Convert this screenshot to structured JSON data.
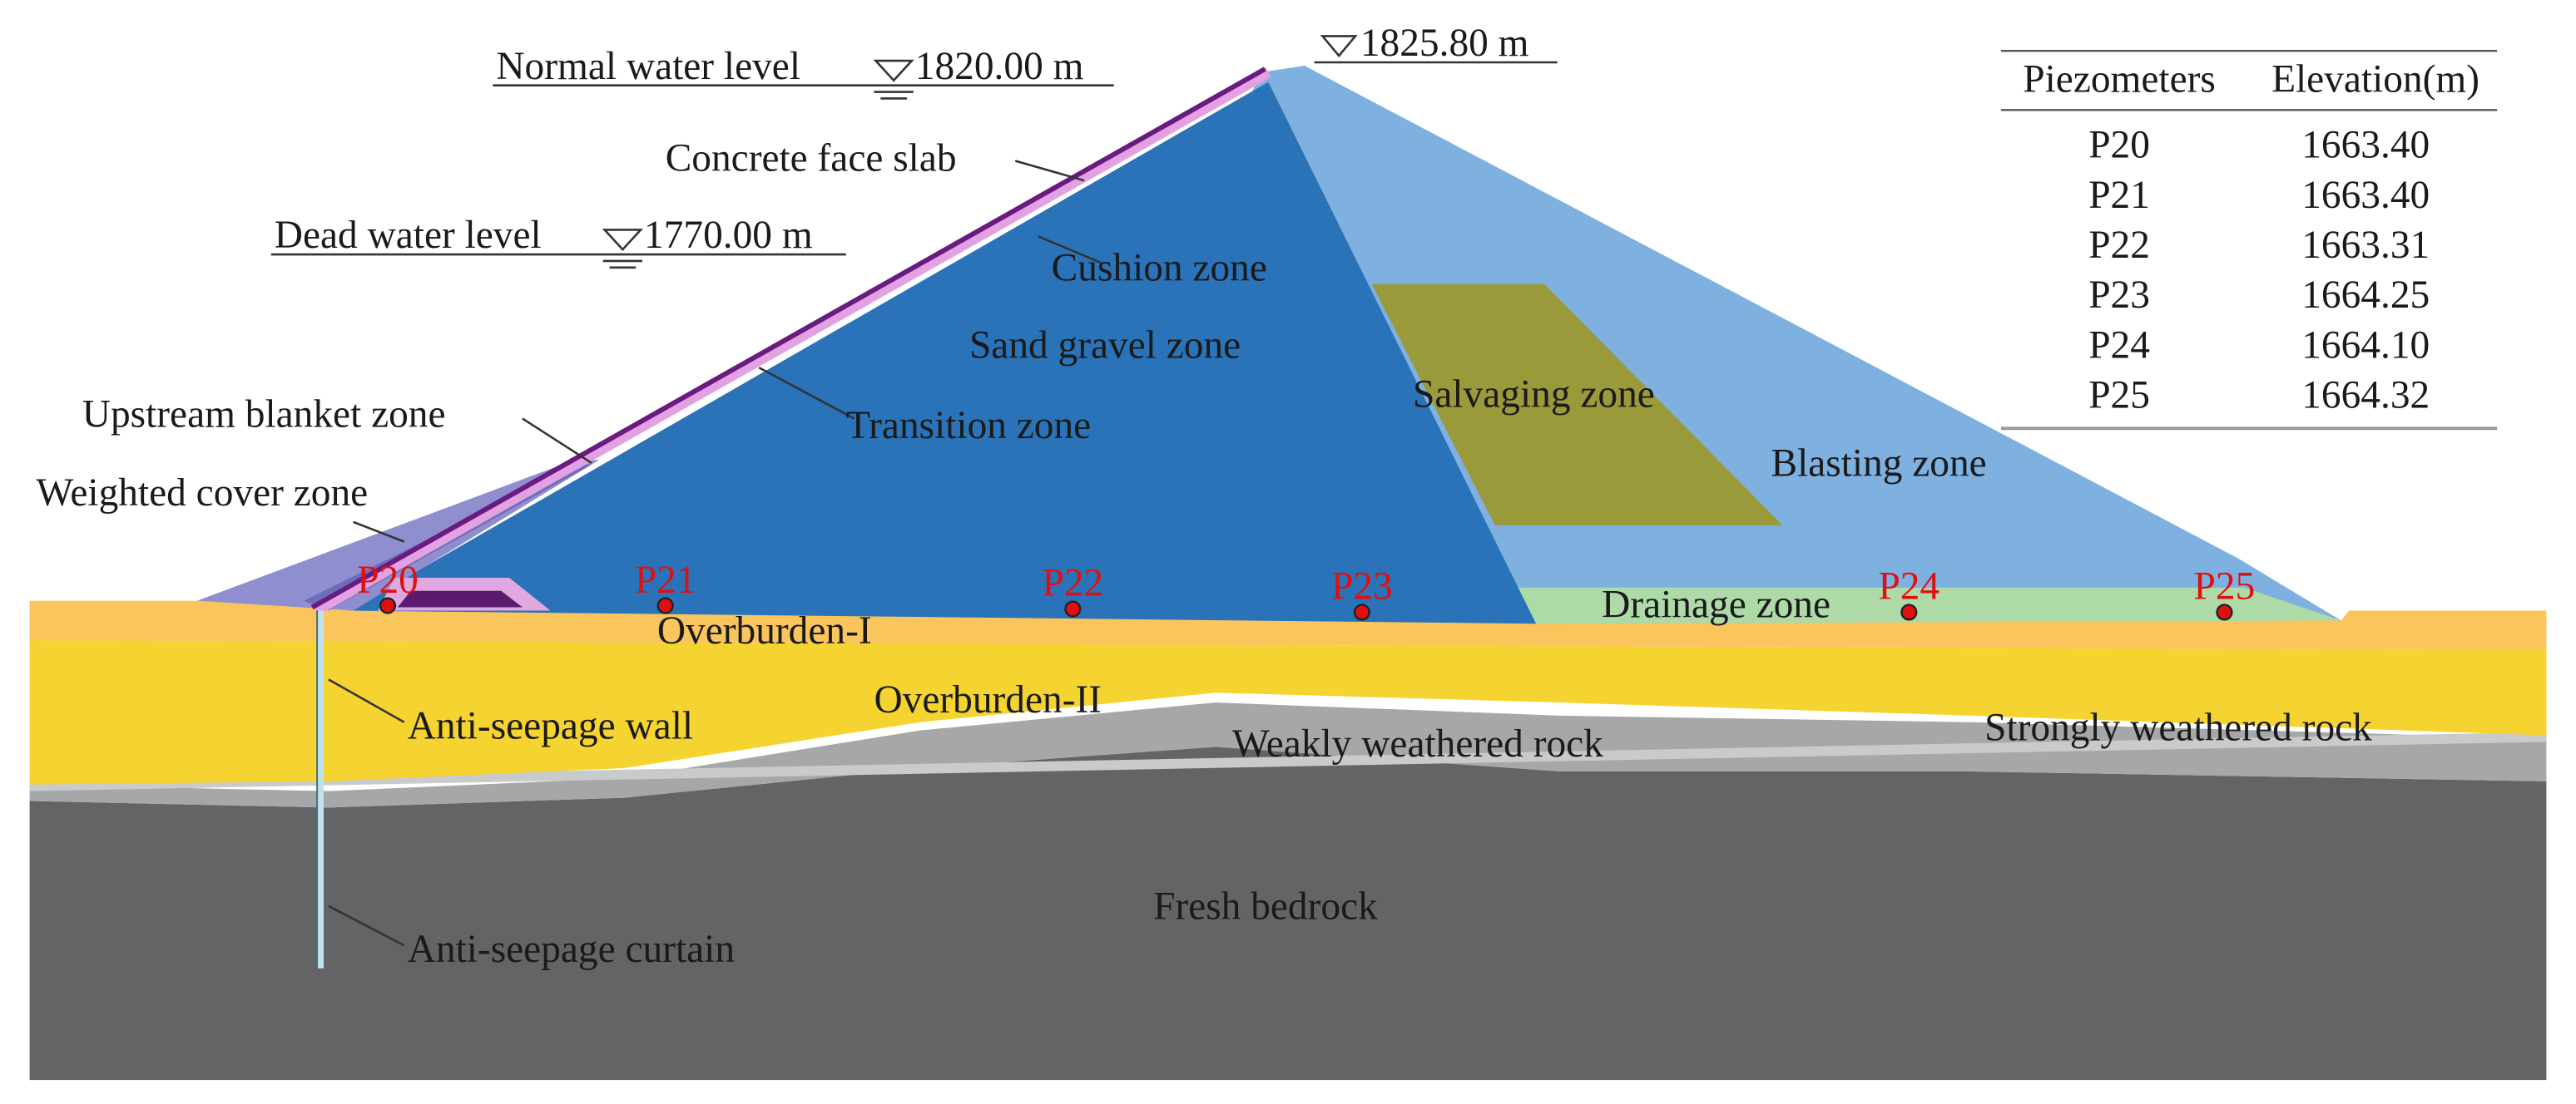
{
  "water_levels": {
    "normal": {
      "label": "Normal water level",
      "elevation": "1820.00 m"
    },
    "dead": {
      "label": "Dead water level",
      "elevation": "1770.00 m"
    },
    "crest": {
      "elevation": "1825.80 m"
    }
  },
  "zones": [
    "Concrete face slab",
    "Cushion zone",
    "Sand gravel zone",
    "Transition zone",
    "Upstream blanket zone",
    "Weighted cover zone",
    "Salvaging zone",
    "Blasting zone",
    "Drainage zone",
    "Overburden-I",
    "Overburden-II",
    "Anti-seepage wall",
    "Weakly weathered rock",
    "Strongly weathered rock",
    "Fresh bedrock",
    "Anti-seepage curtain"
  ],
  "piezometers": [
    "P20",
    "P21",
    "P22",
    "P23",
    "P24",
    "P25"
  ],
  "table": {
    "header": [
      "Piezometers",
      "Elevation(m)"
    ],
    "rows": [
      [
        "P20",
        "1663.40"
      ],
      [
        "P21",
        "1663.40"
      ],
      [
        "P22",
        "1663.31"
      ],
      [
        "P23",
        "1664.25"
      ],
      [
        "P24",
        "1664.10"
      ],
      [
        "P25",
        "1664.32"
      ]
    ]
  }
}
